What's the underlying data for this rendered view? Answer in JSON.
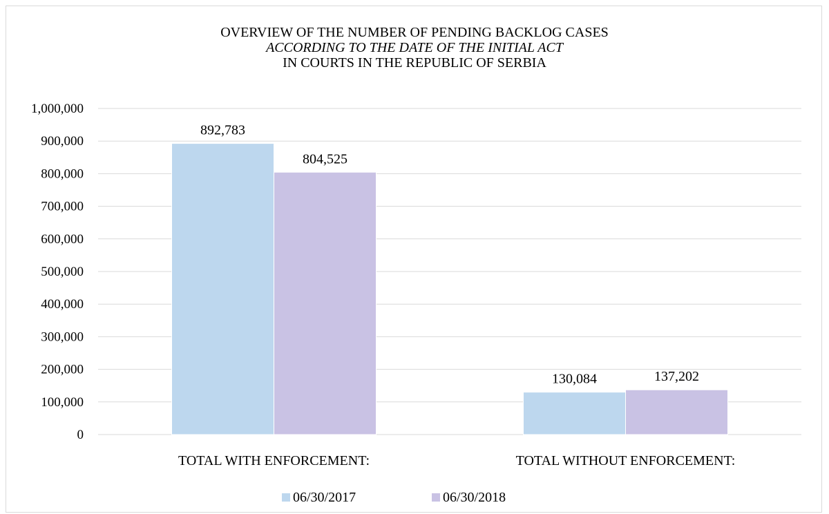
{
  "chart_data": {
    "type": "bar",
    "title_lines": [
      "OVERVIEW OF THE NUMBER OF PENDING BACKLOG CASES",
      "ACCORDING TO THE DATE OF THE INITIAL ACT",
      "IN COURTS IN THE REPUBLIC OF SERBIA"
    ],
    "title_italic_line": 1,
    "categories": [
      "TOTAL WITH ENFORCEMENT:",
      "TOTAL WITHOUT ENFORCEMENT:"
    ],
    "series": [
      {
        "name": "06/30/2017",
        "color": "#bdd7ee",
        "values": [
          892783,
          130084
        ],
        "labels": [
          "892,783",
          "130,084"
        ]
      },
      {
        "name": "06/30/2018",
        "color": "#c9c2e4",
        "values": [
          804525,
          137202
        ],
        "labels": [
          "804,525",
          "137,202"
        ]
      }
    ],
    "ylim": [
      0,
      1000000
    ],
    "ytick_step": 100000,
    "yticks": [
      "0",
      "100,000",
      "200,000",
      "300,000",
      "400,000",
      "500,000",
      "600,000",
      "700,000",
      "800,000",
      "900,000",
      "1,000,000"
    ],
    "grid": true,
    "gridline_color": "#d9d9d9",
    "legend_position": "bottom",
    "xlabel": "",
    "ylabel": ""
  }
}
